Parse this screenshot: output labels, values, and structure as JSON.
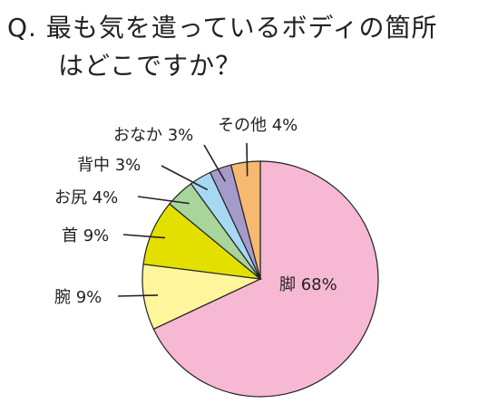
{
  "chart_data": {
    "type": "pie",
    "title_lines": [
      "Q. 最も気を遣っているボディの箇所",
      "はどこですか？"
    ],
    "slices": [
      {
        "label": "脚 68%",
        "value": 68,
        "color": "#F6B8D3"
      },
      {
        "label": "腕 9%",
        "value": 9,
        "color": "#FFF59D"
      },
      {
        "label": "首 9%",
        "value": 9,
        "color": "#E3E000"
      },
      {
        "label": "お尻 4%",
        "value": 4,
        "color": "#A8D59A"
      },
      {
        "label": "背中 3%",
        "value": 3,
        "color": "#A7D8F3"
      },
      {
        "label": "おなか 3%",
        "value": 3,
        "color": "#A49BCB"
      },
      {
        "label": "その他 4%",
        "value": 4,
        "color": "#F7B870"
      }
    ],
    "start": "12-o'clock",
    "direction": "clockwise",
    "legend": "none"
  }
}
